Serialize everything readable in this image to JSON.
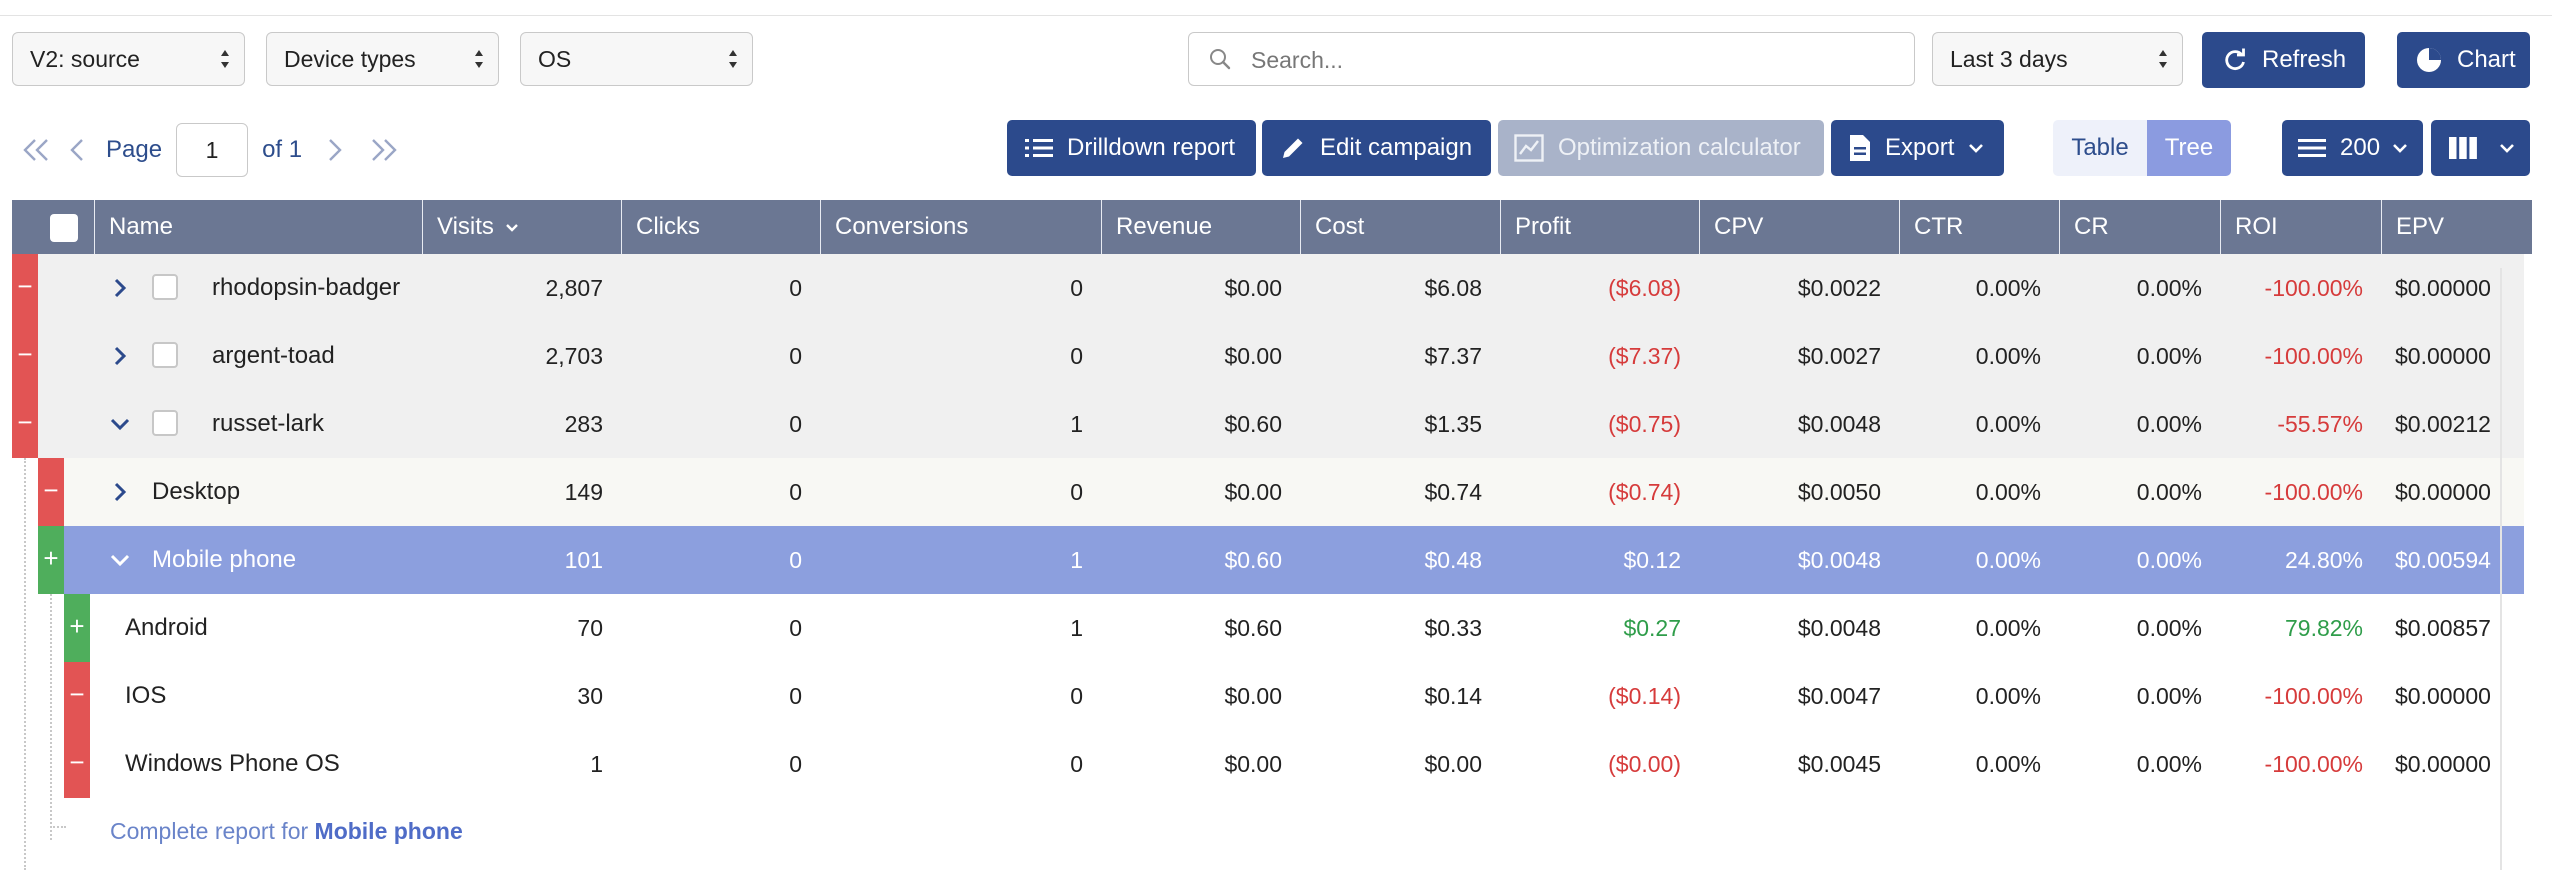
{
  "filters": {
    "group1": "V2: source",
    "group2": "Device types",
    "group3": "OS",
    "search_placeholder": "Search...",
    "date_range": "Last 3 days"
  },
  "toolbar": {
    "refresh_label": "Refresh",
    "chart_label": "Chart",
    "drilldown_label": "Drilldown report",
    "edit_campaign_label": "Edit campaign",
    "optimization_label": "Optimization calculator",
    "export_label": "Export",
    "view_table_label": "Table",
    "view_tree_label": "Tree",
    "rows_per_page": "200"
  },
  "pager": {
    "page_label": "Page",
    "current_page": "1",
    "of_label": "of 1"
  },
  "columns": [
    "Name",
    "Visits",
    "Clicks",
    "Conversions",
    "Revenue",
    "Cost",
    "Profit",
    "CPV",
    "CTR",
    "CR",
    "ROI",
    "EPV"
  ],
  "rows": [
    {
      "name": "rhodopsin-badger",
      "level": 0,
      "toggle": "−",
      "expanded": false,
      "visits": "2,807",
      "clicks": "0",
      "conversions": "0",
      "revenue": "$0.00",
      "cost": "$6.08",
      "profit": "($6.08)",
      "cpv": "$0.0022",
      "ctr": "0.00%",
      "cr": "0.00%",
      "roi": "-100.00%",
      "epv": "$0.00000"
    },
    {
      "name": "argent-toad",
      "level": 0,
      "toggle": "−",
      "expanded": false,
      "visits": "2,703",
      "clicks": "0",
      "conversions": "0",
      "revenue": "$0.00",
      "cost": "$7.37",
      "profit": "($7.37)",
      "cpv": "$0.0027",
      "ctr": "0.00%",
      "cr": "0.00%",
      "roi": "-100.00%",
      "epv": "$0.00000"
    },
    {
      "name": "russet-lark",
      "level": 0,
      "toggle": "−",
      "expanded": true,
      "visits": "283",
      "clicks": "0",
      "conversions": "1",
      "revenue": "$0.60",
      "cost": "$1.35",
      "profit": "($0.75)",
      "cpv": "$0.0048",
      "ctr": "0.00%",
      "cr": "0.00%",
      "roi": "-55.57%",
      "epv": "$0.00212"
    },
    {
      "name": "Desktop",
      "level": 1,
      "toggle": "−",
      "expanded": false,
      "visits": "149",
      "clicks": "0",
      "conversions": "0",
      "revenue": "$0.00",
      "cost": "$0.74",
      "profit": "($0.74)",
      "cpv": "$0.0050",
      "ctr": "0.00%",
      "cr": "0.00%",
      "roi": "-100.00%",
      "epv": "$0.00000"
    },
    {
      "name": "Mobile phone",
      "level": 1,
      "toggle": "+",
      "expanded": true,
      "selected": true,
      "visits": "101",
      "clicks": "0",
      "conversions": "1",
      "revenue": "$0.60",
      "cost": "$0.48",
      "profit": "$0.12",
      "cpv": "$0.0048",
      "ctr": "0.00%",
      "cr": "0.00%",
      "roi": "24.80%",
      "epv": "$0.00594"
    },
    {
      "name": "Android",
      "level": 2,
      "toggle": "+",
      "visits": "70",
      "clicks": "0",
      "conversions": "1",
      "revenue": "$0.60",
      "cost": "$0.33",
      "profit": "$0.27",
      "cpv": "$0.0048",
      "ctr": "0.00%",
      "cr": "0.00%",
      "roi": "79.82%",
      "epv": "$0.00857"
    },
    {
      "name": "IOS",
      "level": 2,
      "toggle": "−",
      "visits": "30",
      "clicks": "0",
      "conversions": "0",
      "revenue": "$0.00",
      "cost": "$0.14",
      "profit": "($0.14)",
      "cpv": "$0.0047",
      "ctr": "0.00%",
      "cr": "0.00%",
      "roi": "-100.00%",
      "epv": "$0.00000"
    },
    {
      "name": "Windows Phone OS",
      "level": 2,
      "toggle": "−",
      "visits": "1",
      "clicks": "0",
      "conversions": "0",
      "revenue": "$0.00",
      "cost": "$0.00",
      "profit": "($0.00)",
      "cpv": "$0.0045",
      "ctr": "0.00%",
      "cr": "0.00%",
      "roi": "-100.00%",
      "epv": "$0.00000"
    }
  ],
  "complete_report": {
    "prefix": "Complete report for ",
    "target": "Mobile phone"
  },
  "colors": {
    "primary": "#2c4a8c",
    "header": "#6b7793",
    "selected_row": "#8c9fde",
    "negative": "#d63b3b",
    "positive": "#2f9d4a"
  }
}
